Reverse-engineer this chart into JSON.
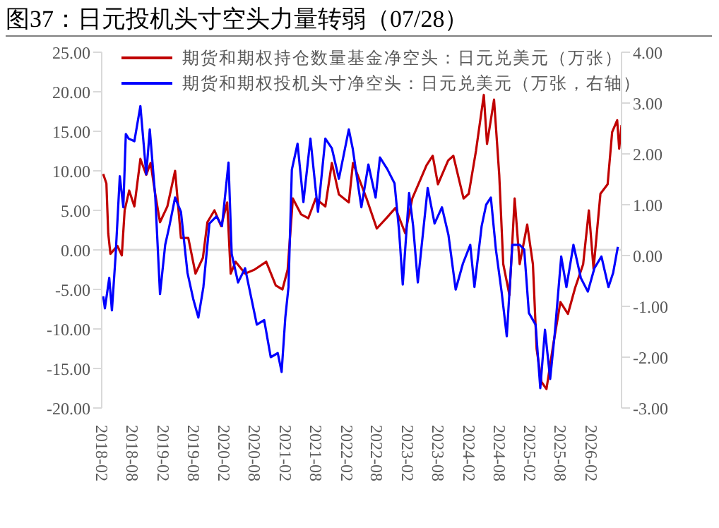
{
  "chart_data": {
    "type": "line",
    "title": "图37：日元投机头寸空头力量转弱（07/28）",
    "legend": "top left",
    "xlim": [
      "2018-02",
      "2026-08"
    ],
    "xticks": [
      "2018-02",
      "2018-08",
      "2019-02",
      "2019-08",
      "2020-02",
      "2020-08",
      "2021-02",
      "2021-08",
      "2022-02",
      "2022-08",
      "2023-02",
      "2023-08",
      "2024-02",
      "2024-08",
      "2025-02",
      "2025-08",
      "2026-02"
    ],
    "ylim": [
      -20,
      25
    ],
    "yticks": [
      {
        "value": -20,
        "label": "-20.00"
      },
      {
        "value": -15,
        "label": "-15.00"
      },
      {
        "value": -10,
        "label": "-10.00"
      },
      {
        "value": -5,
        "label": "-5.00"
      },
      {
        "value": 0,
        "label": "0.00"
      },
      {
        "value": 5,
        "label": "5.00"
      },
      {
        "value": 10,
        "label": "10.00"
      },
      {
        "value": 15,
        "label": "15.00"
      },
      {
        "value": 20,
        "label": "20.00"
      },
      {
        "value": 25,
        "label": "25.00"
      }
    ],
    "y2lim": [
      -3,
      4
    ],
    "y2ticks": [
      {
        "value": -3,
        "label": "-3.00"
      },
      {
        "value": -2,
        "label": "-2.00"
      },
      {
        "value": -1,
        "label": "-1.00"
      },
      {
        "value": 0,
        "label": "0.00"
      },
      {
        "value": 1,
        "label": "1.00"
      },
      {
        "value": 2,
        "label": "2.00"
      },
      {
        "value": 3,
        "label": "3.00"
      },
      {
        "value": 4,
        "label": "4.00"
      }
    ],
    "ref_lines": [
      {
        "axis": "y",
        "value": 0,
        "color": "#d9d9d9"
      }
    ],
    "series": [
      {
        "name": "期货和期权持仓数量基金净空头：日元兑美元（万张）",
        "color": "#c00000",
        "x": [
          "2018-02-10",
          "2018-03-01",
          "2018-03-12",
          "2018-03-25",
          "2018-05-06",
          "2018-06-01",
          "2018-06-18",
          "2018-07-15",
          "2018-08-15",
          "2018-09-20",
          "2018-10-25",
          "2018-11-20",
          "2018-12-18",
          "2019-01-15",
          "2019-02-28",
          "2019-04-15",
          "2019-05-20",
          "2019-07-03",
          "2019-08-15",
          "2019-09-28",
          "2019-10-25",
          "2019-12-06",
          "2020-01-15",
          "2020-02-20",
          "2020-03-12",
          "2020-04-10",
          "2020-06-06",
          "2020-08-01",
          "2020-10-10",
          "2020-12-06",
          "2021-01-15",
          "2021-02-15",
          "2021-03-18",
          "2021-05-06",
          "2021-06-18",
          "2021-08-01",
          "2021-09-28",
          "2021-11-06",
          "2021-12-18",
          "2022-02-15",
          "2022-03-12",
          "2022-06-01",
          "2022-08-01",
          "2022-10-01",
          "2022-11-20",
          "2023-01-18",
          "2023-03-01",
          "2023-05-25",
          "2023-07-01",
          "2023-08-01",
          "2023-10-01",
          "2023-11-01",
          "2024-01-01",
          "2024-02-01",
          "2024-03-15",
          "2024-05-01",
          "2024-05-20",
          "2024-07-01",
          "2024-08-01",
          "2024-08-25",
          "2024-10-01",
          "2024-11-01",
          "2024-12-01",
          "2025-01-15",
          "2025-02-18",
          "2025-03-12",
          "2025-04-10",
          "2025-05-10",
          "2025-06-20",
          "2025-08-01",
          "2025-09-15",
          "2025-10-28",
          "2025-12-15",
          "2026-01-18",
          "2026-02-15",
          "2026-03-28",
          "2026-05-10",
          "2026-06-06",
          "2026-07-06",
          "2026-07-18",
          "2026-08-01"
        ],
        "values": [
          9.6,
          8.4,
          2.1,
          -0.5,
          0.5,
          -0.7,
          5,
          7.5,
          5.5,
          11.5,
          9.5,
          11,
          7,
          3.5,
          5.5,
          10,
          1.5,
          1.5,
          -3,
          -1,
          3.5,
          5,
          3,
          6,
          -3,
          -1.5,
          -3,
          -2.5,
          -1.5,
          -4.5,
          -5,
          -2.5,
          6.5,
          4.5,
          4,
          6.5,
          5.5,
          11,
          7,
          6,
          11,
          6.5,
          2.7,
          4.1,
          5.3,
          2.1,
          6.5,
          10.7,
          11.9,
          8.3,
          11.3,
          11.9,
          6.5,
          7.1,
          12.5,
          19.6,
          13.4,
          19,
          9.5,
          -1.8,
          -5.7,
          6.5,
          -1.8,
          3.2,
          -1.8,
          -12.5,
          -16.7,
          -17.6,
          -11.9,
          -6.6,
          -8.1,
          -4.8,
          -1.8,
          5,
          -2.4,
          7.1,
          8.3,
          14.9,
          16.4,
          12.8,
          15.8
        ]
      },
      {
        "name": "期货和期权投机头寸净空头：日元兑美元（万张，右轴）",
        "color": "#0000ff",
        "axis": "y2",
        "x": [
          "2018-02-10",
          "2018-02-20",
          "2018-03-18",
          "2018-04-03",
          "2018-04-25",
          "2018-05-20",
          "2018-06-10",
          "2018-06-25",
          "2018-07-12",
          "2018-08-15",
          "2018-09-20",
          "2018-10-25",
          "2018-11-15",
          "2018-12-18",
          "2019-01-15",
          "2019-02-15",
          "2019-03-12",
          "2019-04-15",
          "2019-05-20",
          "2019-06-28",
          "2019-08-01",
          "2019-09-01",
          "2019-10-01",
          "2019-11-06",
          "2019-12-18",
          "2020-01-20",
          "2020-02-28",
          "2020-03-18",
          "2020-04-25",
          "2020-06-06",
          "2020-08-15",
          "2020-09-28",
          "2020-11-06",
          "2020-12-18",
          "2021-01-10",
          "2021-02-01",
          "2021-02-20",
          "2021-03-12",
          "2021-04-15",
          "2021-05-20",
          "2021-07-01",
          "2021-08-15",
          "2021-09-28",
          "2021-11-06",
          "2021-12-18",
          "2022-02-15",
          "2022-03-10",
          "2022-05-01",
          "2022-06-12",
          "2022-07-25",
          "2022-08-20",
          "2022-10-03",
          "2022-11-15",
          "2022-12-12",
          "2023-01-03",
          "2023-02-10",
          "2023-03-06",
          "2023-04-03",
          "2023-06-01",
          "2023-07-12",
          "2023-08-25",
          "2023-10-03",
          "2023-11-15",
          "2023-12-28",
          "2024-02-10",
          "2024-03-06",
          "2024-04-18",
          "2024-05-15",
          "2024-06-12",
          "2024-07-12",
          "2024-08-15",
          "2024-09-15",
          "2024-10-18",
          "2024-12-01",
          "2024-12-28",
          "2025-01-25",
          "2025-03-06",
          "2025-04-03",
          "2025-05-01",
          "2025-06-01",
          "2025-06-28",
          "2025-08-06",
          "2025-09-06",
          "2025-10-18",
          "2025-12-01",
          "2026-01-12",
          "2026-02-20",
          "2026-04-03",
          "2026-05-15",
          "2026-06-12",
          "2026-07-10"
        ],
        "values": [
          -0.8,
          -1.04,
          -0.44,
          -1.08,
          0,
          1.56,
          0.95,
          2.39,
          2.3,
          2.25,
          2.94,
          1.6,
          2.48,
          1.14,
          -0.76,
          0.21,
          0.58,
          1.14,
          0.86,
          -0.34,
          -0.85,
          -1.22,
          -0.62,
          0.63,
          0.77,
          0.58,
          1.83,
          0.03,
          -0.53,
          -0.25,
          -1.36,
          -1.27,
          -2,
          -1.92,
          -2.29,
          -1.22,
          -0.62,
          1.69,
          2.2,
          1.05,
          2.3,
          0.86,
          2.3,
          2.11,
          1.51,
          2.48,
          2.11,
          0.95,
          1.79,
          1.14,
          1.93,
          1.7,
          1.42,
          0.49,
          -0.57,
          1.23,
          0.58,
          -0.53,
          1.33,
          0.63,
          0.95,
          0.4,
          -0.67,
          -0.16,
          0.21,
          -0.62,
          0.58,
          1,
          1.14,
          0.12,
          -0.71,
          -1.59,
          0.21,
          0.21,
          0.12,
          -1.13,
          -1.36,
          -2.61,
          -1.46,
          -2.43,
          -1.55,
          -0.02,
          -0.62,
          0.21,
          -0.44,
          -0.71,
          -0.25,
          -0.02,
          -0.62,
          -0.34,
          0.17
        ]
      }
    ]
  }
}
